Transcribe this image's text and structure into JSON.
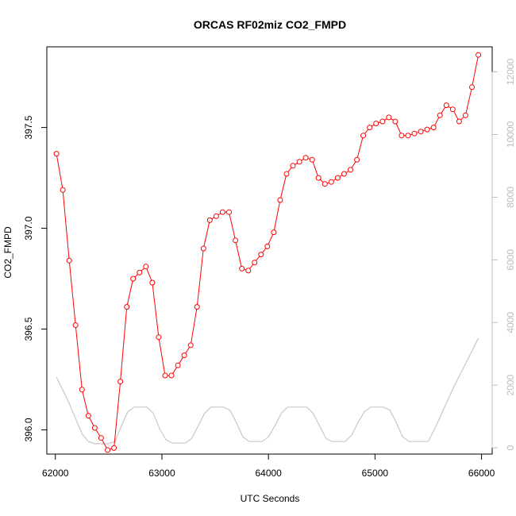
{
  "chart_data": {
    "type": "line",
    "title": "ORCAS RF02miz CO2_FMPD",
    "xlabel": "UTC Seconds",
    "ylabel": "CO2_FMPD",
    "xlim": [
      61920,
      66100
    ],
    "ylim": [
      395.88,
      397.9
    ],
    "y2lim": [
      -200,
      12800
    ],
    "x_ticks": [
      62000,
      63000,
      64000,
      65000,
      66000
    ],
    "y_ticks": [
      396.0,
      396.5,
      397.0,
      397.5
    ],
    "y_tick_labels": [
      "396.0",
      "396.5",
      "397.0",
      "397.5"
    ],
    "y2_ticks": [
      0,
      2000,
      4000,
      6000,
      8000,
      10000,
      12000
    ],
    "grid": false,
    "colors": {
      "primary": "#ff0000",
      "secondary": "#c8c8c8",
      "right_axis": "#bdbdbd"
    },
    "series": [
      {
        "role": "primary",
        "marker": "open-circle",
        "points": [
          [
            62010,
            397.37
          ],
          [
            62070,
            397.19
          ],
          [
            62130,
            396.84
          ],
          [
            62190,
            396.52
          ],
          [
            62250,
            396.2
          ],
          [
            62310,
            396.07
          ],
          [
            62370,
            396.01
          ],
          [
            62430,
            395.96
          ],
          [
            62490,
            395.9
          ],
          [
            62550,
            395.91
          ],
          [
            62610,
            396.24
          ],
          [
            62670,
            396.61
          ],
          [
            62730,
            396.75
          ],
          [
            62790,
            396.78
          ],
          [
            62850,
            396.81
          ],
          [
            62910,
            396.73
          ],
          [
            62970,
            396.46
          ],
          [
            63030,
            396.27
          ],
          [
            63090,
            396.27
          ],
          [
            63150,
            396.32
          ],
          [
            63210,
            396.37
          ],
          [
            63270,
            396.42
          ],
          [
            63330,
            396.61
          ],
          [
            63390,
            396.9
          ],
          [
            63450,
            397.04
          ],
          [
            63510,
            397.06
          ],
          [
            63570,
            397.08
          ],
          [
            63630,
            397.08
          ],
          [
            63690,
            396.94
          ],
          [
            63750,
            396.8
          ],
          [
            63810,
            396.79
          ],
          [
            63870,
            396.83
          ],
          [
            63930,
            396.87
          ],
          [
            63990,
            396.91
          ],
          [
            64050,
            396.98
          ],
          [
            64110,
            397.14
          ],
          [
            64170,
            397.27
          ],
          [
            64230,
            397.31
          ],
          [
            64290,
            397.33
          ],
          [
            64350,
            397.35
          ],
          [
            64410,
            397.34
          ],
          [
            64470,
            397.25
          ],
          [
            64530,
            397.22
          ],
          [
            64590,
            397.23
          ],
          [
            64650,
            397.25
          ],
          [
            64710,
            397.27
          ],
          [
            64770,
            397.29
          ],
          [
            64830,
            397.34
          ],
          [
            64890,
            397.46
          ],
          [
            64950,
            397.5
          ],
          [
            65010,
            397.52
          ],
          [
            65070,
            397.53
          ],
          [
            65130,
            397.55
          ],
          [
            65190,
            397.53
          ],
          [
            65250,
            397.46
          ],
          [
            65310,
            397.46
          ],
          [
            65370,
            397.47
          ],
          [
            65430,
            397.48
          ],
          [
            65490,
            397.49
          ],
          [
            65550,
            397.5
          ],
          [
            65610,
            397.56
          ],
          [
            65670,
            397.61
          ],
          [
            65730,
            397.59
          ],
          [
            65790,
            397.53
          ],
          [
            65850,
            397.56
          ],
          [
            65910,
            397.7
          ],
          [
            65970,
            397.86
          ]
        ]
      },
      {
        "role": "secondary",
        "axis": "right",
        "marker": "none",
        "points": [
          [
            62010,
            2250
          ],
          [
            62120,
            1500
          ],
          [
            62250,
            450
          ],
          [
            62310,
            200
          ],
          [
            62370,
            130
          ],
          [
            62430,
            130
          ],
          [
            62490,
            130
          ],
          [
            62560,
            200
          ],
          [
            62620,
            700
          ],
          [
            62680,
            1150
          ],
          [
            62740,
            1300
          ],
          [
            62800,
            1300
          ],
          [
            62860,
            1300
          ],
          [
            62920,
            1100
          ],
          [
            62980,
            600
          ],
          [
            63040,
            250
          ],
          [
            63100,
            150
          ],
          [
            63160,
            150
          ],
          [
            63220,
            150
          ],
          [
            63280,
            300
          ],
          [
            63340,
            700
          ],
          [
            63400,
            1100
          ],
          [
            63460,
            1300
          ],
          [
            63520,
            1300
          ],
          [
            63580,
            1300
          ],
          [
            63640,
            1200
          ],
          [
            63700,
            800
          ],
          [
            63760,
            350
          ],
          [
            63820,
            200
          ],
          [
            63880,
            200
          ],
          [
            63940,
            200
          ],
          [
            64000,
            350
          ],
          [
            64060,
            700
          ],
          [
            64120,
            1100
          ],
          [
            64180,
            1300
          ],
          [
            64240,
            1300
          ],
          [
            64300,
            1300
          ],
          [
            64360,
            1300
          ],
          [
            64420,
            1100
          ],
          [
            64480,
            700
          ],
          [
            64540,
            300
          ],
          [
            64600,
            200
          ],
          [
            64660,
            200
          ],
          [
            64720,
            200
          ],
          [
            64780,
            400
          ],
          [
            64840,
            800
          ],
          [
            64900,
            1150
          ],
          [
            64960,
            1300
          ],
          [
            65020,
            1300
          ],
          [
            65080,
            1300
          ],
          [
            65140,
            1200
          ],
          [
            65200,
            800
          ],
          [
            65260,
            350
          ],
          [
            65320,
            200
          ],
          [
            65380,
            200
          ],
          [
            65440,
            200
          ],
          [
            65500,
            200
          ],
          [
            65560,
            600
          ],
          [
            65620,
            1050
          ],
          [
            65680,
            1500
          ],
          [
            65740,
            1950
          ],
          [
            65800,
            2350
          ],
          [
            65860,
            2750
          ],
          [
            65920,
            3150
          ],
          [
            65970,
            3500
          ]
        ]
      }
    ]
  }
}
